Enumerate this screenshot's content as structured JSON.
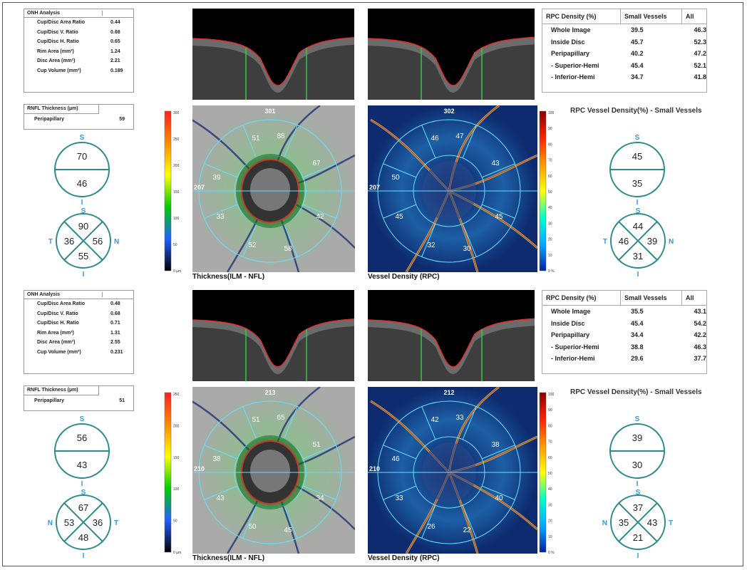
{
  "panels": [
    {
      "onh": {
        "title": "ONH Analysis",
        "rows": [
          {
            "label": "Cup/Disc Area Ratio",
            "value": "0.44"
          },
          {
            "label": "Cup/Disc V. Ratio",
            "value": "0.68"
          },
          {
            "label": "Cup/Disc H. Ratio",
            "value": "0.65"
          },
          {
            "label": "Rim Area (mm²)",
            "value": "1.24"
          },
          {
            "label": "Disc Area (mm²)",
            "value": "2.21"
          },
          {
            "label": "Cup Volume (mm³)",
            "value": "0.189"
          }
        ]
      },
      "rnfl": {
        "title": "RNFL Thickness (µm)",
        "label": "Peripapillary",
        "value": "59"
      },
      "hemi_left": {
        "top": "70",
        "bottom": "46",
        "S": "S",
        "I": "I"
      },
      "quad_left": {
        "top": "90",
        "left": "36",
        "right": "56",
        "bottom": "55",
        "S": "S",
        "I": "I",
        "L": "T",
        "R": "N"
      },
      "thickness_map": {
        "top_label": "301",
        "left_label": "207",
        "sectors": [
          "51",
          "88",
          "67",
          "39",
          "33",
          "42",
          "52",
          "58"
        ],
        "scale": [
          "300",
          "250",
          "200",
          "150",
          "100",
          "50",
          "0 µm"
        ],
        "caption": "Thickness(ILM - NFL)"
      },
      "vessel_map": {
        "top_label": "302",
        "left_label": "207",
        "sectors": [
          "46",
          "47",
          "43",
          "50",
          "45",
          "45",
          "32",
          "30"
        ],
        "scale": [
          "100",
          "90",
          "80",
          "70",
          "60",
          "50",
          "40",
          "30",
          "20",
          "10",
          "0 %"
        ],
        "caption": "Vessel Density (RPC)"
      },
      "rpc": {
        "headers": [
          "RPC Density (%)",
          "Small Vessels",
          "All"
        ],
        "rows": [
          [
            "Whole Image",
            "39.5",
            "46.3"
          ],
          [
            "Inside Disc",
            "45.7",
            "52.3"
          ],
          [
            "Peripapillary",
            "40.2",
            "47.2"
          ],
          [
            "- Superior-Hemi",
            "45.4",
            "52.1"
          ],
          [
            "- Inferior-Hemi",
            "34.7",
            "41.8"
          ]
        ]
      },
      "rpc_title": "RPC Vessel Density(%) - Small Vessels",
      "hemi_right": {
        "top": "45",
        "bottom": "35",
        "S": "S",
        "I": "I"
      },
      "quad_right": {
        "top": "44",
        "left": "46",
        "right": "39",
        "bottom": "31",
        "S": "S",
        "I": "I",
        "L": "T",
        "R": "N"
      }
    },
    {
      "onh": {
        "title": "ONH Analysis",
        "rows": [
          {
            "label": "Cup/Disc Area Ratio",
            "value": "0.48"
          },
          {
            "label": "Cup/Disc V. Ratio",
            "value": "0.68"
          },
          {
            "label": "Cup/Disc H. Ratio",
            "value": "0.71"
          },
          {
            "label": "Rim Area (mm²)",
            "value": "1.31"
          },
          {
            "label": "Disc Area (mm²)",
            "value": "2.55"
          },
          {
            "label": "Cup Volume (mm³)",
            "value": "0.231"
          }
        ]
      },
      "rnfl": {
        "title": "RNFL Thickness (µm)",
        "label": "Peripapillary",
        "value": "51"
      },
      "hemi_left": {
        "top": "56",
        "bottom": "43",
        "S": "S",
        "I": "I"
      },
      "quad_left": {
        "top": "67",
        "left": "53",
        "right": "36",
        "bottom": "48",
        "S": "S",
        "I": "I",
        "L": "N",
        "R": "T"
      },
      "thickness_map": {
        "top_label": "213",
        "left_label": "210",
        "sectors": [
          "51",
          "65",
          "51",
          "38",
          "43",
          "34",
          "50",
          "45"
        ],
        "scale": [
          "250",
          "200",
          "150",
          "100",
          "50",
          "0 µm"
        ],
        "caption": "Thickness(ILM - NFL)"
      },
      "vessel_map": {
        "top_label": "212",
        "left_label": "210",
        "sectors": [
          "42",
          "33",
          "38",
          "46",
          "33",
          "40",
          "26",
          "22"
        ],
        "scale": [
          "100",
          "90",
          "80",
          "70",
          "60",
          "50",
          "40",
          "30",
          "20",
          "10",
          "0 %"
        ],
        "caption": "Vessel Density (RPC)"
      },
      "rpc": {
        "headers": [
          "RPC Density (%)",
          "Small Vessels",
          "All"
        ],
        "rows": [
          [
            "Whole Image",
            "35.5",
            "43.1"
          ],
          [
            "Inside Disc",
            "45.4",
            "54.2"
          ],
          [
            "Peripapillary",
            "34.4",
            "42.2"
          ],
          [
            "- Superior-Hemi",
            "38.8",
            "46.3"
          ],
          [
            "- Inferior-Hemi",
            "29.6",
            "37.7"
          ]
        ]
      },
      "rpc_title": "RPC Vessel Density(%) - Small Vessels",
      "hemi_right": {
        "top": "39",
        "bottom": "30",
        "S": "S",
        "I": "I"
      },
      "quad_right": {
        "top": "37",
        "left": "35",
        "right": "43",
        "bottom": "21",
        "S": "S",
        "I": "I",
        "L": "N",
        "R": "T"
      }
    }
  ],
  "colors": {
    "diagram": "#2e8b8b",
    "orientation": "#3399dd",
    "vessel": "#c0392b",
    "cyan": "#66e0ff"
  }
}
